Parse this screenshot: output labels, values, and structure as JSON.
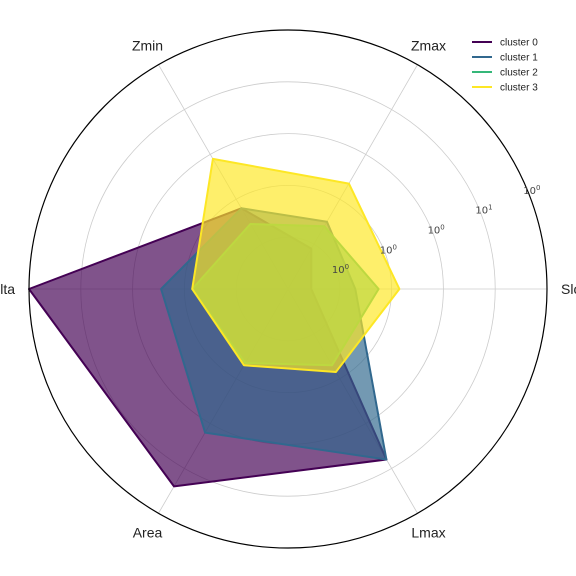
{
  "chart_data": {
    "type": "radar",
    "title": "",
    "axes": [
      "Slope",
      "Zmax",
      "Zmin",
      "Delta",
      "Area",
      "Lmax"
    ],
    "scale": "log",
    "r_ticks": [
      {
        "base": "10",
        "exp": "0"
      },
      {
        "base": "10",
        "exp": "0"
      },
      {
        "base": "10",
        "exp": "0"
      },
      {
        "base": "10",
        "exp": "1"
      },
      {
        "base": "10",
        "exp": "0"
      }
    ],
    "rlim": [
      0,
      1
    ],
    "grid": true,
    "legend_position": "top-right",
    "series": [
      {
        "name": "cluster 0",
        "color": "#440154",
        "fill_opacity": 0.68,
        "values": [
          0.09,
          0.18,
          0.36,
          1.0,
          0.88,
          0.76
        ]
      },
      {
        "name": "cluster 1",
        "color": "#31688e",
        "fill_opacity": 0.68,
        "values": [
          0.26,
          0.3,
          0.36,
          0.49,
          0.64,
          0.76
        ]
      },
      {
        "name": "cluster 2",
        "color": "#35b779",
        "fill_opacity": 0.68,
        "values": [
          0.35,
          0.28,
          0.29,
          0.37,
          0.33,
          0.34
        ]
      },
      {
        "name": "cluster 3",
        "color": "#fde725",
        "fill_opacity": 0.68,
        "values": [
          0.43,
          0.47,
          0.58,
          0.37,
          0.34,
          0.37
        ]
      }
    ]
  }
}
